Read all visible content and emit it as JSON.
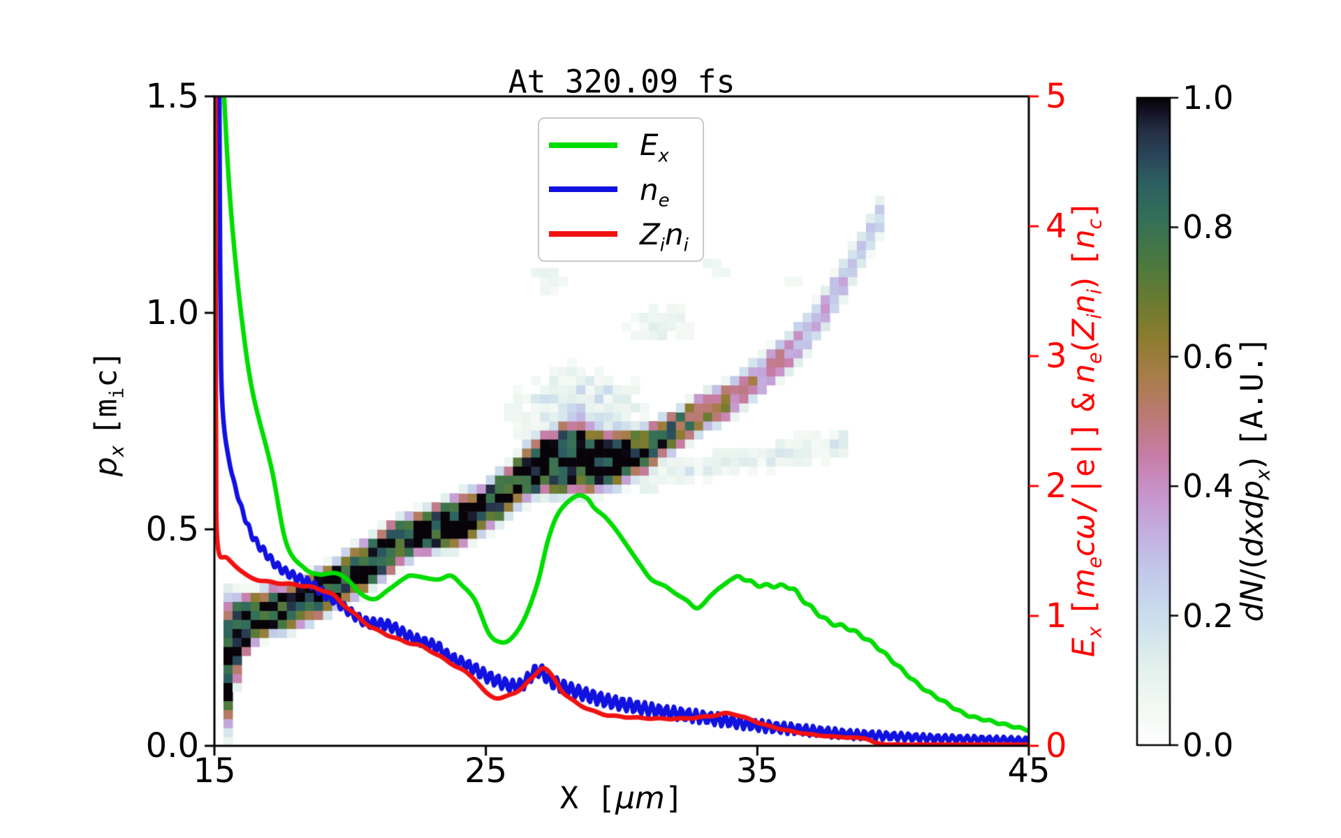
{
  "title": "At 320.09 fs",
  "axes": {
    "x": {
      "label_html": "<span class='tt'>X [</span><i>μm</i><span class='tt'>]</span>",
      "range": [
        15,
        45
      ],
      "ticks": [
        "15",
        "25",
        "35",
        "45"
      ]
    },
    "y_left": {
      "label_html": "<i>p<sub>x</sub></i> <span class='tt'>[m<sub>i</sub>c]</span>",
      "range": [
        0,
        1.5
      ],
      "ticks": [
        "0.0",
        "0.5",
        "1.0",
        "1.5"
      ]
    },
    "y_right": {
      "label_html": "<i>E<sub>x</sub></i> <span class='tt'>[</span><i>m<sub>e</sub>cω</i><span class='tt'>/|e|]</span> <span class='tt'>&amp;</span> <i>n<sub>e</sub></i>(<i>Z<sub>i</sub>n<sub>i</sub></i>) <span class='tt'>[</span><i>n<sub>c</sub></i><span class='tt'>]</span>",
      "range": [
        0,
        5
      ],
      "ticks": [
        "0",
        "1",
        "2",
        "3",
        "4",
        "5"
      ],
      "color": "#ff0000"
    }
  },
  "colorbar": {
    "label_html": "<i>dN</i>/(<i>dxdp<sub>x</sub></i>) <span class='tt'>[A.U.]</span>",
    "range": [
      0,
      1
    ],
    "ticks": [
      "0.0",
      "0.2",
      "0.4",
      "0.6",
      "0.8",
      "1.0"
    ],
    "palette": [
      [
        0.0,
        "#ffffff"
      ],
      [
        0.06,
        "#f2f8f3"
      ],
      [
        0.13,
        "#e0efec"
      ],
      [
        0.2,
        "#cbdded"
      ],
      [
        0.27,
        "#c2c8e9"
      ],
      [
        0.33,
        "#c3aee0"
      ],
      [
        0.39,
        "#c794cb"
      ],
      [
        0.45,
        "#c77ca6"
      ],
      [
        0.51,
        "#bb7a74"
      ],
      [
        0.57,
        "#a87d49"
      ],
      [
        0.63,
        "#8c7c30"
      ],
      [
        0.69,
        "#687b31"
      ],
      [
        0.75,
        "#497840"
      ],
      [
        0.81,
        "#357057"
      ],
      [
        0.87,
        "#2c5f61"
      ],
      [
        0.91,
        "#2a4659"
      ],
      [
        0.95,
        "#242e45"
      ],
      [
        0.98,
        "#131223"
      ],
      [
        1.0,
        "#070309"
      ]
    ]
  },
  "legend": {
    "entries": [
      {
        "label_html": "<i>E<sub>x</sub></i>",
        "color": "#00dc00"
      },
      {
        "label_html": "<i>n<sub>e</sub></i>",
        "color": "#1111e0"
      },
      {
        "label_html": "<i>Z<sub>i</sub>n<sub>i</sub></i>",
        "color": "#f21111"
      }
    ]
  },
  "chart_data": {
    "type": [
      "heatmap",
      "line"
    ],
    "title": "At 320.09 fs",
    "xlabel": "X [um]",
    "x_range": [
      15,
      45
    ],
    "y_left_label": "p_x [m_i c]",
    "y_left_range": [
      0,
      1.5
    ],
    "y_right_label": "E_x [m_e c w/|e|] & n_e(Z_i n_i) [n_c]",
    "y_right_range": [
      0,
      5
    ],
    "grid": false,
    "legend_position": "upper center-left",
    "series": [
      {
        "name": "E_x",
        "color": "#00dc00",
        "axis": "right",
        "points": [
          [
            15.32,
            5.15
          ],
          [
            15.5,
            4.45
          ],
          [
            15.7,
            3.9
          ],
          [
            16.0,
            3.3
          ],
          [
            16.4,
            2.73
          ],
          [
            17.1,
            2.14
          ],
          [
            17.65,
            1.56
          ],
          [
            18.3,
            1.37
          ],
          [
            18.85,
            1.32
          ],
          [
            19.45,
            1.33
          ],
          [
            19.9,
            1.28
          ],
          [
            20.4,
            1.17
          ],
          [
            20.9,
            1.13
          ],
          [
            21.4,
            1.2
          ],
          [
            22.0,
            1.29
          ],
          [
            22.3,
            1.31
          ],
          [
            23.2,
            1.28
          ],
          [
            23.7,
            1.31
          ],
          [
            24.1,
            1.24
          ],
          [
            24.6,
            1.12
          ],
          [
            25.1,
            0.87
          ],
          [
            25.5,
            0.8
          ],
          [
            25.9,
            0.82
          ],
          [
            26.4,
            0.97
          ],
          [
            26.9,
            1.25
          ],
          [
            27.3,
            1.59
          ],
          [
            27.7,
            1.8
          ],
          [
            28.3,
            1.92
          ],
          [
            28.7,
            1.91
          ],
          [
            29.0,
            1.83
          ],
          [
            29.4,
            1.76
          ],
          [
            29.8,
            1.66
          ],
          [
            30.3,
            1.51
          ],
          [
            30.7,
            1.39
          ],
          [
            31.1,
            1.28
          ],
          [
            31.6,
            1.23
          ],
          [
            32.0,
            1.17
          ],
          [
            32.4,
            1.12
          ],
          [
            32.8,
            1.06
          ],
          [
            33.3,
            1.16
          ],
          [
            33.7,
            1.23
          ],
          [
            34.3,
            1.3
          ],
          [
            35.0,
            1.24
          ],
          [
            35.9,
            1.23
          ],
          [
            36.3,
            1.21
          ],
          [
            36.7,
            1.12
          ],
          [
            37.6,
            0.96
          ],
          [
            38.4,
            0.9
          ],
          [
            39.3,
            0.78
          ],
          [
            40.1,
            0.63
          ],
          [
            41.0,
            0.46
          ],
          [
            41.8,
            0.35
          ],
          [
            42.7,
            0.24
          ],
          [
            43.6,
            0.19
          ],
          [
            44.4,
            0.15
          ],
          [
            45.0,
            0.12
          ]
        ],
        "oscillation": {
          "period": 0.55,
          "amp": [
            [
              15,
              0
            ],
            [
              34,
              0
            ],
            [
              34.5,
              0.012
            ],
            [
              38,
              0.012
            ],
            [
              41,
              0.008
            ],
            [
              45,
              0.006
            ]
          ]
        }
      },
      {
        "name": "n_e",
        "color": "#1111e0",
        "axis": "right",
        "points": [
          [
            15.18,
            5.15
          ],
          [
            15.22,
            3.5
          ],
          [
            15.3,
            2.6
          ],
          [
            15.64,
            2.1
          ],
          [
            16.3,
            1.66
          ],
          [
            16.9,
            1.48
          ],
          [
            17.4,
            1.37
          ],
          [
            18.0,
            1.3
          ],
          [
            18.6,
            1.24
          ],
          [
            19.05,
            1.17
          ],
          [
            19.45,
            1.12
          ],
          [
            19.8,
            1.06
          ],
          [
            20.5,
            0.96
          ],
          [
            21.0,
            0.94
          ],
          [
            21.5,
            0.92
          ],
          [
            22.3,
            0.83
          ],
          [
            23.2,
            0.76
          ],
          [
            23.6,
            0.69
          ],
          [
            24.5,
            0.6
          ],
          [
            25.3,
            0.51
          ],
          [
            26.2,
            0.46
          ],
          [
            26.9,
            0.58
          ],
          [
            27.4,
            0.5
          ],
          [
            27.9,
            0.45
          ],
          [
            28.6,
            0.4
          ],
          [
            29.4,
            0.35
          ],
          [
            30.3,
            0.31
          ],
          [
            31.3,
            0.27
          ],
          [
            32.3,
            0.24
          ],
          [
            33.3,
            0.21
          ],
          [
            34.3,
            0.18
          ],
          [
            35.3,
            0.15
          ],
          [
            36.3,
            0.13
          ],
          [
            37.3,
            0.11
          ],
          [
            38.3,
            0.09
          ],
          [
            39.3,
            0.08
          ],
          [
            40.3,
            0.07
          ],
          [
            41.3,
            0.06
          ],
          [
            42.3,
            0.055
          ],
          [
            43.3,
            0.05
          ],
          [
            44.3,
            0.045
          ],
          [
            45.0,
            0.04
          ]
        ],
        "oscillation": {
          "period": 0.27,
          "amp": [
            [
              15.3,
              0
            ],
            [
              16.5,
              0.028
            ],
            [
              18,
              0.032
            ],
            [
              20,
              0.035
            ],
            [
              22,
              0.04
            ],
            [
              24,
              0.045
            ],
            [
              26,
              0.048
            ],
            [
              28,
              0.05
            ],
            [
              30,
              0.05
            ],
            [
              32,
              0.05
            ],
            [
              34,
              0.048
            ],
            [
              36,
              0.042
            ],
            [
              38,
              0.036
            ],
            [
              40,
              0.03
            ],
            [
              42,
              0.026
            ],
            [
              45,
              0.022
            ]
          ]
        }
      },
      {
        "name": "Z_i n_i",
        "color": "#f21111",
        "axis": "right",
        "points": [
          [
            15.03,
            5.15
          ],
          [
            15.06,
            2.4
          ],
          [
            15.12,
            1.55
          ],
          [
            15.5,
            1.44
          ],
          [
            16.3,
            1.3
          ],
          [
            17.1,
            1.26
          ],
          [
            18.0,
            1.24
          ],
          [
            18.6,
            1.22
          ],
          [
            19.3,
            1.17
          ],
          [
            19.8,
            1.08
          ],
          [
            20.6,
            0.94
          ],
          [
            21.0,
            0.89
          ],
          [
            21.9,
            0.81
          ],
          [
            22.7,
            0.76
          ],
          [
            23.6,
            0.65
          ],
          [
            24.5,
            0.53
          ],
          [
            25.05,
            0.4
          ],
          [
            25.55,
            0.37
          ],
          [
            26.15,
            0.42
          ],
          [
            26.7,
            0.52
          ],
          [
            27.1,
            0.6
          ],
          [
            27.5,
            0.52
          ],
          [
            27.9,
            0.4
          ],
          [
            28.6,
            0.3
          ],
          [
            29.4,
            0.24
          ],
          [
            30.3,
            0.22
          ],
          [
            31.3,
            0.21
          ],
          [
            32.3,
            0.21
          ],
          [
            33.3,
            0.23
          ],
          [
            33.9,
            0.25
          ],
          [
            34.5,
            0.22
          ],
          [
            35.3,
            0.16
          ],
          [
            36.3,
            0.11
          ],
          [
            37.3,
            0.08
          ],
          [
            38.3,
            0.065
          ],
          [
            39.0,
            0.055
          ],
          [
            39.4,
            0.02
          ],
          [
            40.0,
            0.01
          ],
          [
            42.0,
            0.01
          ],
          [
            45.0,
            0.01
          ]
        ],
        "oscillation": {
          "period": 0.8,
          "amp": [
            [
              15,
              0
            ],
            [
              18,
              0.005
            ],
            [
              25,
              0.005
            ],
            [
              45,
              0
            ]
          ]
        }
      }
    ],
    "heatmap": {
      "name": "dN/(dxdp_x)",
      "units": "A.U.",
      "value_range": [
        0,
        1
      ],
      "grid_cells": {
        "cols": 90,
        "rows": 72
      },
      "track": [
        [
          15.2,
          0.13,
          0.18,
          1.0
        ],
        [
          15.6,
          0.21,
          0.12,
          1.0
        ],
        [
          16.0,
          0.275,
          0.065,
          1.0
        ],
        [
          16.5,
          0.295,
          0.05,
          1.0
        ],
        [
          17.0,
          0.31,
          0.048,
          1.0
        ],
        [
          17.5,
          0.318,
          0.048,
          1.0
        ],
        [
          18.0,
          0.326,
          0.048,
          1.0
        ],
        [
          18.5,
          0.34,
          0.048,
          1.0
        ],
        [
          19.0,
          0.355,
          0.048,
          1.0
        ],
        [
          19.5,
          0.375,
          0.048,
          1.0
        ],
        [
          20.0,
          0.395,
          0.05,
          1.0
        ],
        [
          20.7,
          0.42,
          0.05,
          1.0
        ],
        [
          21.5,
          0.458,
          0.05,
          1.0
        ],
        [
          22.0,
          0.478,
          0.047,
          1.0
        ],
        [
          22.5,
          0.49,
          0.045,
          1.0
        ],
        [
          23.0,
          0.5,
          0.045,
          1.0
        ],
        [
          23.5,
          0.51,
          0.05,
          1.0
        ],
        [
          24.0,
          0.52,
          0.055,
          1.0
        ],
        [
          24.5,
          0.535,
          0.05,
          1.0
        ],
        [
          25.0,
          0.55,
          0.05,
          1.0
        ],
        [
          25.5,
          0.575,
          0.05,
          1.0
        ],
        [
          26.0,
          0.6,
          0.05,
          1.0
        ],
        [
          26.5,
          0.628,
          0.055,
          1.0
        ],
        [
          27.0,
          0.648,
          0.06,
          1.0
        ],
        [
          27.5,
          0.655,
          0.068,
          1.0
        ],
        [
          28.0,
          0.66,
          0.072,
          1.0
        ],
        [
          28.5,
          0.66,
          0.072,
          1.0
        ],
        [
          29.0,
          0.66,
          0.065,
          1.0
        ],
        [
          29.5,
          0.66,
          0.06,
          1.0
        ],
        [
          30.0,
          0.665,
          0.055,
          0.97
        ],
        [
          30.5,
          0.675,
          0.05,
          0.92
        ],
        [
          31.0,
          0.69,
          0.045,
          0.86
        ],
        [
          31.5,
          0.71,
          0.042,
          0.8
        ],
        [
          32.0,
          0.73,
          0.04,
          0.74
        ],
        [
          32.5,
          0.75,
          0.04,
          0.68
        ],
        [
          33.0,
          0.77,
          0.04,
          0.62
        ],
        [
          33.5,
          0.785,
          0.04,
          0.56
        ],
        [
          34.0,
          0.8,
          0.04,
          0.52
        ],
        [
          34.5,
          0.825,
          0.04,
          0.48
        ],
        [
          35.0,
          0.85,
          0.04,
          0.44
        ],
        [
          35.5,
          0.875,
          0.04,
          0.42
        ],
        [
          36.0,
          0.9,
          0.04,
          0.4
        ],
        [
          36.5,
          0.93,
          0.04,
          0.37
        ],
        [
          37.0,
          0.965,
          0.04,
          0.35
        ],
        [
          37.5,
          1.01,
          0.04,
          0.33
        ],
        [
          38.0,
          1.06,
          0.04,
          0.3
        ],
        [
          38.5,
          1.11,
          0.04,
          0.28
        ],
        [
          39.0,
          1.165,
          0.04,
          0.26
        ],
        [
          39.3,
          1.2,
          0.04,
          0.24
        ],
        [
          39.6,
          1.235,
          0.04,
          0.22
        ]
      ],
      "streak": {
        "points": [
          [
            30.8,
            0.615
          ],
          [
            34.0,
            0.655
          ],
          [
            38.2,
            0.7
          ]
        ],
        "halfwidth": 0.024,
        "intensity": 0.11
      },
      "clouds": [
        {
          "x0": 26.6,
          "x1": 30.2,
          "p0": 0.7,
          "p1": 0.84,
          "intensity": 0.2
        },
        {
          "x0": 26.5,
          "x1": 28.2,
          "p0": 1.04,
          "p1": 1.12,
          "intensity": 0.07
        },
        {
          "x0": 30.4,
          "x1": 32.6,
          "p0": 0.93,
          "p1": 1.01,
          "intensity": 0.09
        },
        {
          "x0": 33.0,
          "x1": 34.2,
          "p0": 1.08,
          "p1": 1.14,
          "intensity": 0.07
        },
        {
          "x0": 35.3,
          "x1": 37.0,
          "p0": 1.05,
          "p1": 1.11,
          "intensity": 0.05
        }
      ]
    }
  }
}
